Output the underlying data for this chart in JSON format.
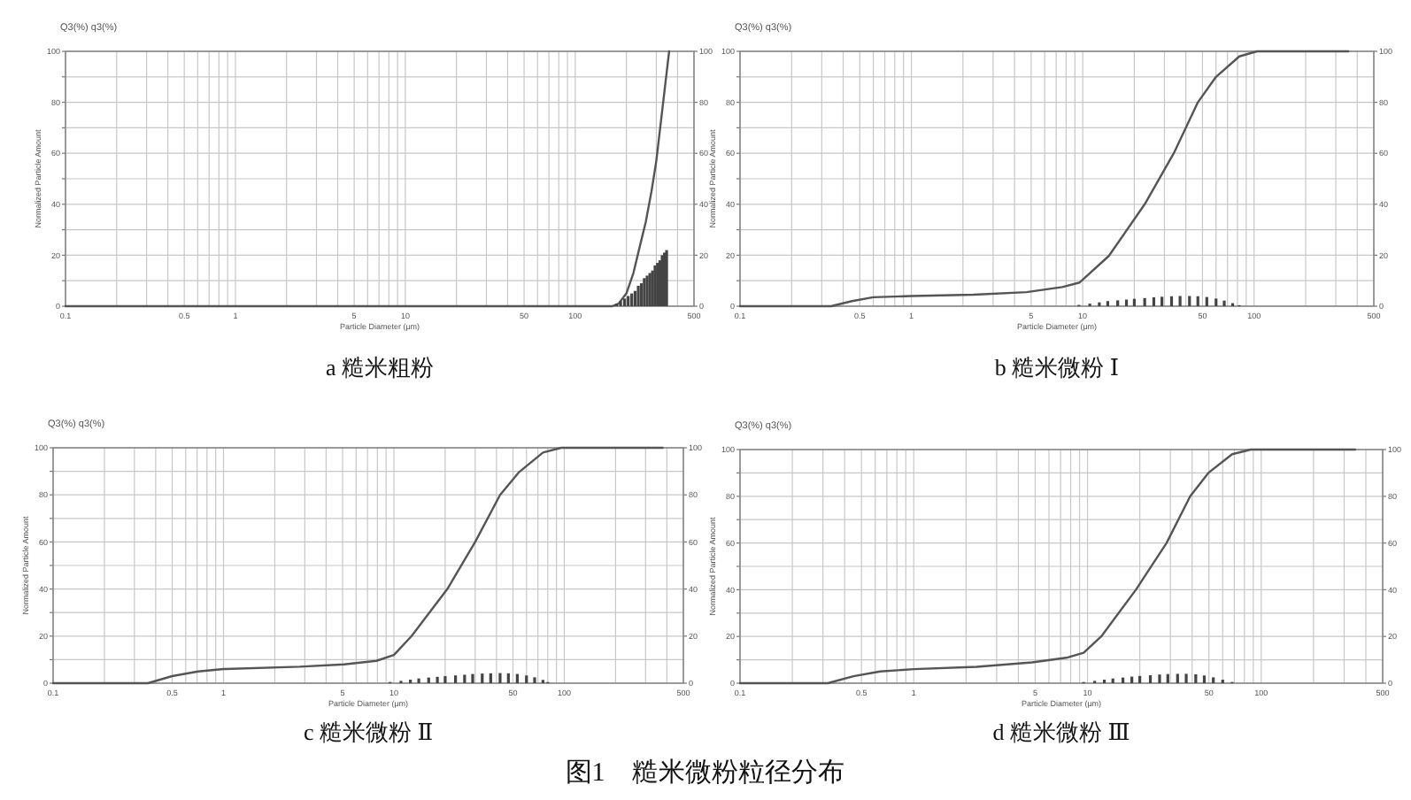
{
  "chart_data": [
    {
      "type": "line",
      "title": "a 糙米粗粉",
      "xlabel": "Particle Diameter (μm)",
      "ylabel": "Normalized Particle Amount",
      "annotations": [
        "Q3(%) q3(%)"
      ],
      "log": "x",
      "grid": true,
      "xlim": [
        0.1,
        500
      ],
      "xticks": [
        0.1,
        {
          "value": 0.2,
          "label": null
        },
        {
          "value": 0.3,
          "label": null
        },
        {
          "value": 0.4,
          "label": null
        },
        0.5,
        {
          "value": 0.6,
          "label": null
        },
        {
          "value": 0.7,
          "label": null
        },
        {
          "value": 0.8,
          "label": null
        },
        {
          "value": 0.9,
          "label": null
        },
        1,
        {
          "value": 2,
          "label": null
        },
        {
          "value": 3,
          "label": null
        },
        {
          "value": 4,
          "label": null
        },
        5,
        {
          "value": 6,
          "label": null
        },
        {
          "value": 7,
          "label": null
        },
        {
          "value": 8,
          "label": null
        },
        {
          "value": 9,
          "label": null
        },
        10,
        {
          "value": 20,
          "label": null
        },
        {
          "value": 30,
          "label": null
        },
        {
          "value": 40,
          "label": null
        },
        50,
        {
          "value": 60,
          "label": null
        },
        {
          "value": 70,
          "label": null
        },
        {
          "value": 80,
          "label": null
        },
        {
          "value": 90,
          "label": null
        },
        100,
        {
          "value": 200,
          "label": null
        },
        {
          "value": 300,
          "label": null
        },
        {
          "value": 400,
          "label": null
        },
        500
      ],
      "ylim": [
        0,
        100
      ],
      "yticks": [
        0,
        {
          "value": 10,
          "label": null
        },
        20,
        {
          "value": 30,
          "label": null
        },
        40,
        {
          "value": 50,
          "label": null
        },
        60,
        {
          "value": 70,
          "label": null
        },
        80,
        {
          "value": 90,
          "label": null
        },
        100
      ],
      "y2lim": [
        0,
        100
      ],
      "y2ticks": [
        0,
        20,
        40,
        60,
        80,
        100
      ],
      "series": [
        {
          "type": "line",
          "color": "#555555",
          "x": [
            0.1,
            165,
            180,
            200,
            220,
            237,
            260,
            281,
            300,
            324,
            340,
            357
          ],
          "values": [
            0,
            0,
            1,
            5,
            13,
            22,
            33,
            45,
            57,
            76,
            88,
            100
          ]
        },
        {
          "type": "bar",
          "color": "#444444",
          "x": [
            175,
            185,
            195,
            205,
            215,
            225,
            235,
            245,
            255,
            265,
            275,
            285,
            295,
            305,
            315,
            325,
            335,
            345
          ],
          "values": [
            1,
            2,
            3,
            4,
            5,
            6,
            8,
            9,
            11,
            12,
            13,
            14,
            16,
            17,
            18,
            20,
            21,
            22
          ]
        }
      ]
    },
    {
      "type": "line",
      "title": "b 糙米微粉 Ⅰ",
      "xlabel": "Particle Diameter (μm)",
      "ylabel": "Normalized Particle Amount",
      "annotations": [
        "Q3(%) q3(%)"
      ],
      "log": "x",
      "grid": true,
      "xlim": [
        0.1,
        500
      ],
      "xticks": [
        0.1,
        {
          "value": 0.2,
          "label": null
        },
        {
          "value": 0.3,
          "label": null
        },
        {
          "value": 0.4,
          "label": null
        },
        0.5,
        {
          "value": 0.6,
          "label": null
        },
        {
          "value": 0.7,
          "label": null
        },
        {
          "value": 0.8,
          "label": null
        },
        {
          "value": 0.9,
          "label": null
        },
        1,
        {
          "value": 2,
          "label": null
        },
        {
          "value": 3,
          "label": null
        },
        {
          "value": 4,
          "label": null
        },
        5,
        {
          "value": 6,
          "label": null
        },
        {
          "value": 7,
          "label": null
        },
        {
          "value": 8,
          "label": null
        },
        {
          "value": 9,
          "label": null
        },
        10,
        {
          "value": 20,
          "label": null
        },
        {
          "value": 30,
          "label": null
        },
        {
          "value": 40,
          "label": null
        },
        50,
        {
          "value": 60,
          "label": null
        },
        {
          "value": 70,
          "label": null
        },
        {
          "value": 80,
          "label": null
        },
        {
          "value": 90,
          "label": null
        },
        100,
        {
          "value": 200,
          "label": null
        },
        {
          "value": 300,
          "label": null
        },
        {
          "value": 400,
          "label": null
        },
        500
      ],
      "ylim": [
        0,
        100
      ],
      "yticks": [
        0,
        {
          "value": 10,
          "label": null
        },
        20,
        {
          "value": 30,
          "label": null
        },
        40,
        {
          "value": 50,
          "label": null
        },
        60,
        {
          "value": 70,
          "label": null
        },
        80,
        {
          "value": 90,
          "label": null
        },
        100
      ],
      "y2lim": [
        0,
        100
      ],
      "y2ticks": [
        0,
        20,
        40,
        60,
        80,
        100
      ],
      "series": [
        {
          "type": "line",
          "color": "#555555",
          "x": [
            0.1,
            0.34,
            0.45,
            0.6,
            1.0,
            2.3,
            4.7,
            7.6,
            9.6,
            14.2,
            23,
            34,
            47,
            60,
            82,
            104,
            355
          ],
          "values": [
            0,
            0,
            2,
            3.5,
            4,
            4.5,
            5.5,
            7.5,
            9.3,
            19.7,
            40,
            60,
            80,
            90,
            98,
            100,
            100
          ]
        },
        {
          "type": "bar",
          "color": "#444444",
          "x": [
            9.5,
            11,
            12.5,
            14,
            16,
            18,
            20,
            23,
            26,
            29,
            33,
            37,
            42,
            47,
            53,
            60,
            67,
            75,
            82
          ],
          "values": [
            0.5,
            1,
            1.5,
            2,
            2.3,
            2.6,
            2.9,
            3.2,
            3.5,
            3.7,
            3.9,
            4,
            4,
            3.9,
            3.6,
            3,
            2.2,
            1.2,
            0.4
          ]
        }
      ]
    },
    {
      "type": "line",
      "title": "c 糙米微粉 Ⅱ",
      "xlabel": "Particle Diameter (μm)",
      "ylabel": "Normalized Particle Amount",
      "annotations": [
        "Q3(%) q3(%)"
      ],
      "log": "x",
      "grid": true,
      "xlim": [
        0.1,
        500
      ],
      "xticks": [
        0.1,
        {
          "value": 0.2,
          "label": null
        },
        {
          "value": 0.3,
          "label": null
        },
        {
          "value": 0.4,
          "label": null
        },
        0.5,
        {
          "value": 0.6,
          "label": null
        },
        {
          "value": 0.7,
          "label": null
        },
        {
          "value": 0.8,
          "label": null
        },
        {
          "value": 0.9,
          "label": null
        },
        1,
        {
          "value": 2,
          "label": null
        },
        {
          "value": 3,
          "label": null
        },
        {
          "value": 4,
          "label": null
        },
        5,
        {
          "value": 6,
          "label": null
        },
        {
          "value": 7,
          "label": null
        },
        {
          "value": 8,
          "label": null
        },
        {
          "value": 9,
          "label": null
        },
        10,
        {
          "value": 20,
          "label": null
        },
        {
          "value": 30,
          "label": null
        },
        {
          "value": 40,
          "label": null
        },
        50,
        {
          "value": 60,
          "label": null
        },
        {
          "value": 70,
          "label": null
        },
        {
          "value": 80,
          "label": null
        },
        {
          "value": 90,
          "label": null
        },
        100,
        {
          "value": 200,
          "label": null
        },
        {
          "value": 300,
          "label": null
        },
        {
          "value": 400,
          "label": null
        },
        500
      ],
      "ylim": [
        0,
        100
      ],
      "yticks": [
        0,
        {
          "value": 10,
          "label": null
        },
        20,
        {
          "value": 30,
          "label": null
        },
        40,
        {
          "value": 50,
          "label": null
        },
        60,
        {
          "value": 70,
          "label": null
        },
        80,
        {
          "value": 90,
          "label": null
        },
        100
      ],
      "y2lim": [
        0,
        100
      ],
      "y2ticks": [
        0,
        20,
        40,
        60,
        80,
        100
      ],
      "series": [
        {
          "type": "line",
          "color": "#555555",
          "x": [
            0.1,
            0.36,
            0.5,
            0.71,
            1.0,
            2.8,
            5.1,
            7.9,
            10,
            12.7,
            20.6,
            30,
            42,
            54,
            75,
            96,
            378
          ],
          "values": [
            0,
            0,
            3,
            5,
            6,
            7,
            8,
            9.5,
            12,
            20,
            40,
            60,
            80,
            89.5,
            98,
            100,
            100
          ]
        },
        {
          "type": "bar",
          "color": "#444444",
          "x": [
            9.5,
            11,
            12.5,
            14,
            16,
            18,
            20,
            23,
            26,
            29,
            33,
            37,
            42,
            47,
            53,
            60,
            67,
            75,
            80
          ],
          "values": [
            0.5,
            1,
            1.5,
            2,
            2.4,
            2.7,
            3,
            3.3,
            3.6,
            3.9,
            4.1,
            4.2,
            4.3,
            4.2,
            3.9,
            3.3,
            2.5,
            1.4,
            0.5
          ]
        }
      ]
    },
    {
      "type": "line",
      "title": "d 糙米微粉 Ⅲ",
      "xlabel": "Particle Diameter (μm)",
      "ylabel": "Normalized Particle Amount",
      "annotations": [
        "Q3(%) q3(%)"
      ],
      "log": "x",
      "grid": true,
      "xlim": [
        0.1,
        500
      ],
      "xticks": [
        0.1,
        {
          "value": 0.2,
          "label": null
        },
        {
          "value": 0.3,
          "label": null
        },
        {
          "value": 0.4,
          "label": null
        },
        0.5,
        {
          "value": 0.6,
          "label": null
        },
        {
          "value": 0.7,
          "label": null
        },
        {
          "value": 0.8,
          "label": null
        },
        {
          "value": 0.9,
          "label": null
        },
        1,
        {
          "value": 2,
          "label": null
        },
        {
          "value": 3,
          "label": null
        },
        {
          "value": 4,
          "label": null
        },
        5,
        {
          "value": 6,
          "label": null
        },
        {
          "value": 7,
          "label": null
        },
        {
          "value": 8,
          "label": null
        },
        {
          "value": 9,
          "label": null
        },
        10,
        {
          "value": 20,
          "label": null
        },
        {
          "value": 30,
          "label": null
        },
        {
          "value": 40,
          "label": null
        },
        50,
        {
          "value": 60,
          "label": null
        },
        {
          "value": 70,
          "label": null
        },
        {
          "value": 80,
          "label": null
        },
        {
          "value": 90,
          "label": null
        },
        100,
        {
          "value": 200,
          "label": null
        },
        {
          "value": 300,
          "label": null
        },
        {
          "value": 400,
          "label": null
        },
        500
      ],
      "ylim": [
        0,
        100
      ],
      "yticks": [
        0,
        {
          "value": 10,
          "label": null
        },
        20,
        {
          "value": 30,
          "label": null
        },
        40,
        {
          "value": 50,
          "label": null
        },
        60,
        {
          "value": 70,
          "label": null
        },
        80,
        {
          "value": 90,
          "label": null
        },
        100
      ],
      "y2lim": [
        0,
        100
      ],
      "y2ticks": [
        0,
        20,
        40,
        60,
        80,
        100
      ],
      "series": [
        {
          "type": "line",
          "color": "#555555",
          "x": [
            0.1,
            0.32,
            0.45,
            0.64,
            1.0,
            2.3,
            4.8,
            7.7,
            9.5,
            12,
            19,
            28.5,
            39,
            49.6,
            68,
            87,
            347
          ],
          "values": [
            0,
            0,
            3,
            5,
            6,
            7,
            8.9,
            11,
            13,
            20,
            40,
            60,
            80,
            90,
            98,
            100,
            100
          ]
        },
        {
          "type": "bar",
          "color": "#444444",
          "x": [
            9.5,
            11,
            12.5,
            14,
            16,
            18,
            20,
            23,
            26,
            29,
            33,
            37,
            42,
            47,
            53,
            60,
            68
          ],
          "values": [
            0.5,
            1,
            1.5,
            2,
            2.4,
            2.8,
            3.1,
            3.4,
            3.7,
            3.9,
            4,
            4,
            3.8,
            3.3,
            2.5,
            1.5,
            0.5
          ]
        }
      ]
    },
    {
      "type": "other",
      "title": "图1　糙米微粉粒径分布"
    }
  ]
}
